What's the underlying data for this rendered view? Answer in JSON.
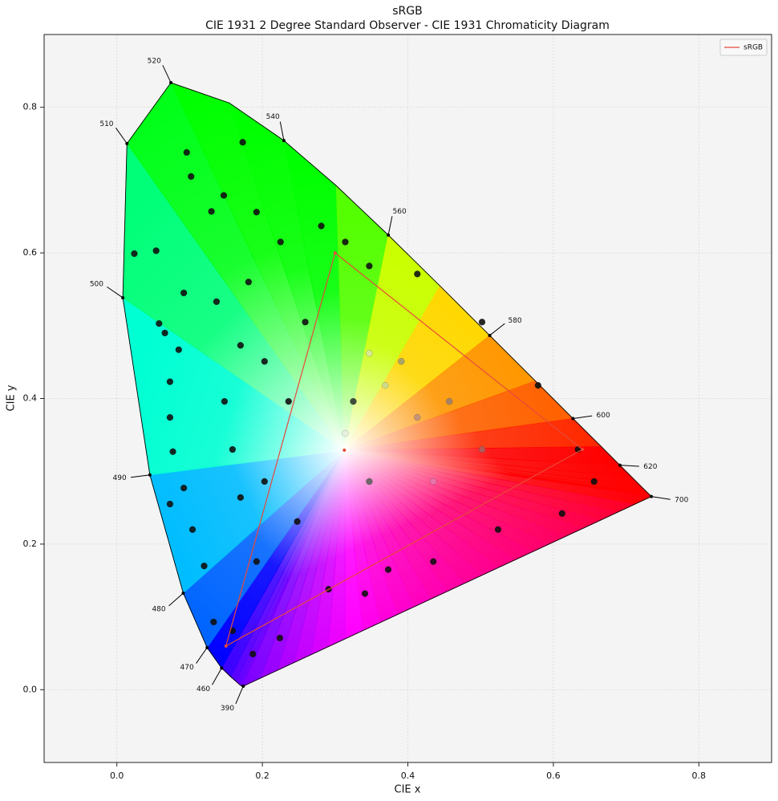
{
  "chart_data": {
    "type": "chromaticity",
    "title": "sRGB",
    "subtitle": "CIE 1931 2 Degree Standard Observer - CIE 1931 Chromaticity Diagram",
    "x_label": "CIE x",
    "y_label": "CIE y",
    "xlim": [
      -0.1,
      0.9
    ],
    "ylim": [
      -0.1,
      0.9
    ],
    "xticks": [
      {
        "value": 0,
        "label": "0.0"
      },
      0.2,
      0.4,
      0.6,
      0.8
    ],
    "yticks": [
      {
        "value": 0,
        "label": "0.0"
      },
      0.2,
      0.4,
      0.6,
      0.8
    ],
    "grid": true,
    "legend": "upper right",
    "spectral_locus": {
      "x": [
        0.1741,
        0.1738,
        0.1733,
        0.1726,
        0.1714,
        0.1689,
        0.1644,
        0.1566,
        0.144,
        0.1241,
        0.0913,
        0.0454,
        0.0082,
        0.0139,
        0.0743,
        0.1547,
        0.2296,
        0.3016,
        0.3731,
        0.4441,
        0.5125,
        0.5752,
        0.627,
        0.6658,
        0.6915,
        0.7079,
        0.719,
        0.726,
        0.73,
        0.732,
        0.7334,
        0.7344,
        0.7347
      ],
      "y": [
        0.005,
        0.0049,
        0.0048,
        0.0048,
        0.0051,
        0.0069,
        0.0109,
        0.0177,
        0.0297,
        0.0578,
        0.1327,
        0.295,
        0.5384,
        0.7502,
        0.8338,
        0.8059,
        0.7543,
        0.6923,
        0.6245,
        0.5547,
        0.4866,
        0.4242,
        0.3725,
        0.334,
        0.3083,
        0.292,
        0.2809,
        0.274,
        0.27,
        0.268,
        0.2666,
        0.2656,
        0.2653
      ]
    },
    "wavelength_labels": {
      "labels": [
        390,
        460,
        470,
        480,
        490,
        500,
        510,
        520,
        540,
        560,
        580,
        600,
        620,
        700
      ],
      "x": [
        0.1738,
        0.144,
        0.1241,
        0.0913,
        0.0454,
        0.0082,
        0.0139,
        0.0743,
        0.2296,
        0.3731,
        0.5125,
        0.627,
        0.6915,
        0.7347
      ],
      "y": [
        0.0049,
        0.0297,
        0.0578,
        0.1327,
        0.295,
        0.5384,
        0.7502,
        0.8338,
        0.7543,
        0.6245,
        0.4866,
        0.3725,
        0.3083,
        0.2653
      ]
    },
    "series": [
      {
        "name": "sRGB",
        "color": "#e8483a",
        "x": [
          0.64,
          0.3,
          0.15
        ],
        "y": [
          0.33,
          0.6,
          0.06
        ]
      }
    ],
    "whitepoint": {
      "x": 0.3127,
      "y": 0.329
    },
    "samples": {
      "x": [
        0.096,
        0.173,
        0.102,
        0.024,
        0.054,
        0.13,
        0.147,
        0.192,
        0.058,
        0.066,
        0.092,
        0.085,
        0.073,
        0.073,
        0.077,
        0.073,
        0.092,
        0.104,
        0.12,
        0.133,
        0.159,
        0.187,
        0.224,
        0.291,
        0.341,
        0.373,
        0.137,
        0.17,
        0.148,
        0.159,
        0.17,
        0.192,
        0.225,
        0.281,
        0.314,
        0.347,
        0.413,
        0.502,
        0.579,
        0.634,
        0.656,
        0.612,
        0.524,
        0.435,
        0.236,
        0.203,
        0.248,
        0.203,
        0.259,
        0.181,
        0.314,
        0.347,
        0.369,
        0.435,
        0.413,
        0.502,
        0.347,
        0.391,
        0.457,
        0.325
      ],
      "y": [
        0.738,
        0.752,
        0.705,
        0.599,
        0.603,
        0.657,
        0.679,
        0.656,
        0.503,
        0.49,
        0.545,
        0.467,
        0.423,
        0.374,
        0.327,
        0.255,
        0.277,
        0.22,
        0.17,
        0.093,
        0.081,
        0.049,
        0.071,
        0.138,
        0.132,
        0.165,
        0.533,
        0.473,
        0.396,
        0.33,
        0.264,
        0.176,
        0.615,
        0.637,
        0.615,
        0.582,
        0.571,
        0.505,
        0.418,
        0.33,
        0.286,
        0.242,
        0.22,
        0.176,
        0.396,
        0.286,
        0.231,
        0.451,
        0.505,
        0.56,
        0.352,
        0.462,
        0.418,
        0.286,
        0.374,
        0.33,
        0.286,
        0.451,
        0.396,
        0.396
      ],
      "colors": [
        "#111111",
        "#111111",
        "#111111",
        "#111111",
        "#111111",
        "#111111",
        "#111111",
        "#111111",
        "#111111",
        "#111111",
        "#111111",
        "#111111",
        "#111111",
        "#111111",
        "#111111",
        "#111111",
        "#111111",
        "#111111",
        "#111111",
        "#111111",
        "#111111",
        "#111111",
        "#111111",
        "#111111",
        "#111111",
        "#111111",
        "#111111",
        "#111111",
        "#111111",
        "#111111",
        "#111111",
        "#111111",
        "#111111",
        "#111111",
        "#111111",
        "#111111",
        "#111111",
        "#111111",
        "#111111",
        "#111111",
        "#111111",
        "#111111",
        "#111111",
        "#111111",
        "#111111",
        "#111111",
        "#111111",
        "#111111",
        "#111111",
        "#111111",
        "#e8f0e0",
        "#d8e8a0",
        "#c8d890",
        "#e878b0",
        "#c09080",
        "#b06060",
        "#606060",
        "#a0a070",
        "#a08070",
        "#303a30"
      ]
    }
  }
}
